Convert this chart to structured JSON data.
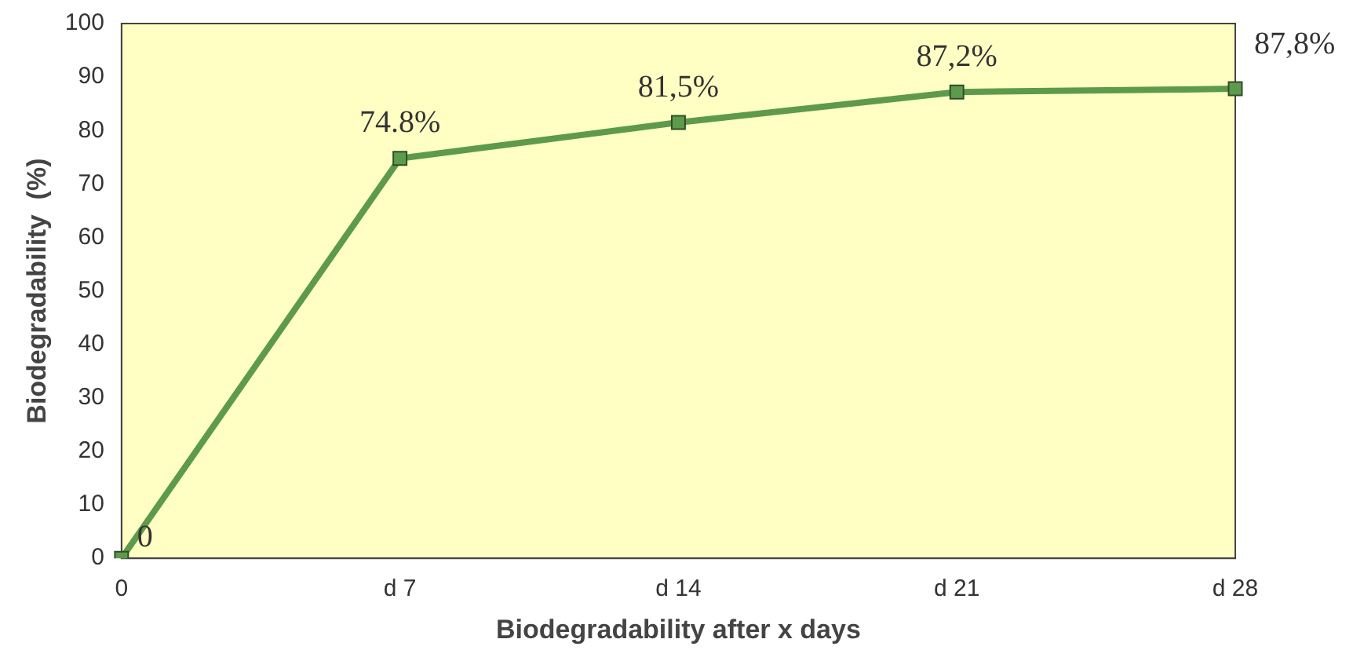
{
  "chart_data": {
    "type": "line",
    "xlabel": "Biodegradability after x days",
    "ylabel": "Biodegradability  (%)",
    "categories": [
      "0",
      "d 7",
      "d 14",
      "d 21",
      "d 28"
    ],
    "series": [
      {
        "color": "#5e9a4c",
        "values": [
          0,
          74.8,
          81.5,
          87.2,
          87.8
        ],
        "value_labels": [
          "0",
          "74.8%",
          "81,5%",
          "87,2%",
          "87,8%"
        ]
      }
    ],
    "ylim": [
      0,
      100
    ],
    "yticks": [
      0,
      10,
      20,
      30,
      40,
      50,
      60,
      70,
      80,
      90,
      100
    ],
    "grid": false,
    "legend": false,
    "marker": "square",
    "line_style": "solid"
  }
}
